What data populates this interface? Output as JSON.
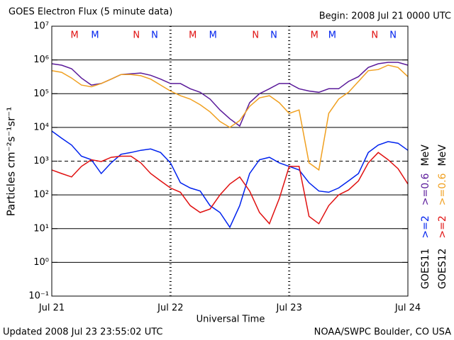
{
  "chart_data": {
    "type": "line",
    "title": "GOES Electron Flux (5 minute data)",
    "subtitle": "Begin: 2008 Jul 21 0000 UTC",
    "x_label": "Universal Time",
    "y_label": "Particles cm⁻²s⁻¹sr⁻¹",
    "footer_left": "Updated 2008 Jul 23 23:55:02 UTC",
    "footer_right": "NOAA/SWPC Boulder, CO USA",
    "log_scale": true,
    "grid": true,
    "threshold": 1000,
    "x": [
      0,
      2,
      4,
      6,
      8,
      10,
      12,
      14,
      16,
      18,
      20,
      22,
      24,
      26,
      28,
      30,
      32,
      34,
      36,
      38,
      40,
      42,
      44,
      46,
      48,
      50,
      52,
      54,
      56,
      58,
      60,
      62,
      64,
      66,
      68,
      70,
      72
    ],
    "xlim": [
      0,
      72
    ],
    "xticks": [
      {
        "value": 0,
        "label": "Jul 21"
      },
      {
        "value": 24,
        "label": "Jul 22"
      },
      {
        "value": 48,
        "label": "Jul 23"
      },
      {
        "value": 72,
        "label": "Jul 24"
      }
    ],
    "ylim": [
      0.1,
      10000000
    ],
    "yticks": [
      {
        "value": 0.1,
        "label": "10⁻¹"
      },
      {
        "value": 1,
        "label": "10⁰"
      },
      {
        "value": 10,
        "label": "10¹"
      },
      {
        "value": 100,
        "label": "10²"
      },
      {
        "value": 1000,
        "label": "10³"
      },
      {
        "value": 10000,
        "label": "10⁴"
      },
      {
        "value": 100000,
        "label": "10⁵"
      },
      {
        "value": 1000000,
        "label": "10⁶"
      },
      {
        "value": 10000000,
        "label": "10⁷"
      }
    ],
    "legend": [
      "GOES11",
      "GOES12"
    ],
    "legend_unit": "MeV",
    "series": [
      {
        "name": ">=2",
        "color": "#0022ee",
        "values": [
          7800,
          4800,
          3000,
          1400,
          1100,
          430,
          890,
          1600,
          1800,
          2100,
          2300,
          1800,
          890,
          230,
          160,
          130,
          48,
          30,
          11,
          48,
          430,
          1100,
          1300,
          890,
          700,
          550,
          230,
          130,
          120,
          160,
          260,
          430,
          1800,
          3000,
          3800,
          3400,
          2100
        ]
      },
      {
        "name": ">=0.6",
        "color": "#5a1a9a",
        "values": [
          770000,
          700000,
          550000,
          290000,
          180000,
          200000,
          270000,
          370000,
          390000,
          410000,
          350000,
          270000,
          200000,
          200000,
          140000,
          110000,
          69000,
          33000,
          18000,
          11000,
          54000,
          100000,
          140000,
          200000,
          200000,
          140000,
          120000,
          110000,
          140000,
          140000,
          230000,
          320000,
          600000,
          770000,
          850000,
          850000,
          700000
        ]
      },
      {
        "name": ">=2",
        "color": "#e01010",
        "values": [
          550,
          430,
          340,
          700,
          1100,
          970,
          1300,
          1400,
          1400,
          890,
          430,
          260,
          160,
          120,
          48,
          30,
          38,
          100,
          210,
          340,
          130,
          30,
          14,
          78,
          700,
          700,
          23,
          14,
          48,
          100,
          140,
          260,
          890,
          1800,
          1100,
          600,
          210
        ]
      },
      {
        "name": ">=0.6",
        "color": "#f0a020",
        "values": [
          480000,
          430000,
          290000,
          180000,
          160000,
          200000,
          270000,
          370000,
          370000,
          340000,
          270000,
          180000,
          120000,
          87000,
          69000,
          47000,
          29000,
          15000,
          10000,
          16000,
          42000,
          75000,
          87000,
          54000,
          26000,
          33000,
          890,
          550,
          26000,
          69000,
          110000,
          230000,
          480000,
          520000,
          700000,
          600000,
          320000
        ]
      }
    ],
    "markers": [
      {
        "label": "M",
        "color": "#e01010",
        "x": 4.6
      },
      {
        "label": "M",
        "color": "#0022ee",
        "x": 8.75
      },
      {
        "label": "N",
        "color": "#e01010",
        "x": 17.1
      },
      {
        "label": "N",
        "color": "#0022ee",
        "x": 20.8
      },
      {
        "label": "M",
        "color": "#e01010",
        "x": 28.5
      },
      {
        "label": "M",
        "color": "#0022ee",
        "x": 32.6
      },
      {
        "label": "N",
        "color": "#e01010",
        "x": 41.2
      },
      {
        "label": "N",
        "color": "#0022ee",
        "x": 44.9
      },
      {
        "label": "M",
        "color": "#e01010",
        "x": 53.1
      },
      {
        "label": "M",
        "color": "#0022ee",
        "x": 56.7
      },
      {
        "label": "N",
        "color": "#e01010",
        "x": 65.3
      },
      {
        "label": "N",
        "color": "#0022ee",
        "x": 69.0
      }
    ]
  }
}
